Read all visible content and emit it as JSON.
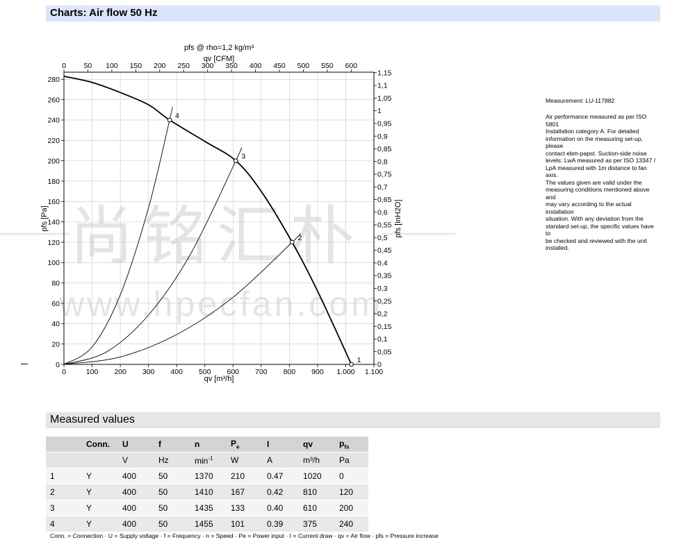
{
  "header": {
    "title": "Charts: Air flow 50 Hz"
  },
  "side_panel": {
    "measurement_ref": "Measurement: LU-117882",
    "description_lines": [
      "Air performance measured as per ISO 5801",
      "Installation category A. For detailed",
      "information on the measuring set-up, please",
      "contact ebm-papst. Suction-side noise",
      "levels: LwA measured as per ISO 13347 /",
      "LpA measured with 1m distance to fan axis.",
      "The values given are valid under the",
      "measuring conditions mentioned above and",
      "may vary according to the actual installation",
      "situation. With any deviation from the",
      "standard set-up, the specific values have to",
      "be checked and reviewed with the unit",
      "installed."
    ]
  },
  "watermark": {
    "cn": "尚铭汇朴",
    "url": "www.hpecfan.com"
  },
  "chart_data": {
    "type": "line",
    "title": "pfs @ rho=1,2 kg/m³",
    "xlabel": "qv [m³/h]",
    "ylabel": "pfs [Pa]",
    "x2label": "qv [CFM]",
    "y2label": "pfs [inH2O]",
    "xlim": [
      0,
      1100
    ],
    "ylim": [
      0,
      287
    ],
    "x_ticks": [
      0,
      100,
      200,
      300,
      400,
      500,
      600,
      700,
      800,
      900,
      1000,
      1100
    ],
    "x_tick_labels": [
      "0",
      "100",
      "200",
      "300",
      "400",
      "500",
      "600",
      "700",
      "800",
      "900",
      "1.000",
      "1.100"
    ],
    "y_ticks": [
      0,
      20,
      40,
      60,
      80,
      100,
      120,
      140,
      160,
      180,
      200,
      220,
      240,
      260,
      280
    ],
    "x2_ticks": [
      0,
      50,
      100,
      150,
      200,
      250,
      300,
      350,
      400,
      450,
      500,
      550,
      600
    ],
    "y2_ticks": [
      "0",
      "0,05",
      "0,1",
      "0,15",
      "0,2",
      "0,25",
      "0,3",
      "0,35",
      "0,4",
      "0,45",
      "0,5",
      "0,55",
      "0,6",
      "0,65",
      "0,7",
      "0,75",
      "0,8",
      "0,85",
      "0,9",
      "0,95",
      "1",
      "1,05",
      "1,1",
      "1,15"
    ],
    "grid": true,
    "series": [
      {
        "values": [
          [
            0,
            283
          ],
          [
            100,
            277
          ],
          [
            200,
            267
          ],
          [
            300,
            255
          ],
          [
            375,
            240
          ],
          [
            500,
            219
          ],
          [
            610,
            200
          ],
          [
            700,
            170
          ],
          [
            810,
            120
          ],
          [
            900,
            72
          ],
          [
            1020,
            0
          ]
        ]
      }
    ],
    "system_curves": [
      {
        "label": "2",
        "values": [
          [
            0,
            0
          ],
          [
            200,
            7.3
          ],
          [
            400,
            29.3
          ],
          [
            600,
            65.9
          ],
          [
            810,
            120
          ],
          [
            840,
            129
          ]
        ]
      },
      {
        "label": "3",
        "values": [
          [
            0,
            0
          ],
          [
            150,
            12.1
          ],
          [
            300,
            48.4
          ],
          [
            450,
            108.8
          ],
          [
            610,
            200
          ],
          [
            630,
            213
          ]
        ]
      },
      {
        "label": "4",
        "values": [
          [
            0,
            0
          ],
          [
            100,
            17.1
          ],
          [
            200,
            68.3
          ],
          [
            300,
            153.6
          ],
          [
            375,
            240
          ],
          [
            385,
            253
          ]
        ]
      }
    ],
    "operating_points": [
      {
        "label": "1",
        "x": 1020,
        "y": 0
      },
      {
        "label": "2",
        "x": 810,
        "y": 120
      },
      {
        "label": "3",
        "x": 610,
        "y": 200
      },
      {
        "label": "4",
        "x": 375,
        "y": 240
      }
    ]
  },
  "measured": {
    "title": "Measured values",
    "headers": [
      "",
      "Conn.",
      "U",
      "f",
      "n",
      "Pe",
      "I",
      "qv",
      "pfs"
    ],
    "units": [
      "",
      "",
      "V",
      "Hz",
      "min-1",
      "W",
      "A",
      "m³/h",
      "Pa"
    ],
    "rows": [
      [
        "1",
        "Y",
        "400",
        "50",
        "1370",
        "210",
        "0.47",
        "1020",
        "0"
      ],
      [
        "2",
        "Y",
        "400",
        "50",
        "1410",
        "167",
        "0.42",
        "810",
        "120"
      ],
      [
        "3",
        "Y",
        "400",
        "50",
        "1435",
        "133",
        "0.40",
        "610",
        "200"
      ],
      [
        "4",
        "Y",
        "400",
        "50",
        "1455",
        "101",
        "0.39",
        "375",
        "240"
      ]
    ],
    "legend": "Conn. = Connection · U = Supply voltage · f = Frequency · n = Speed · Pe = Power input · I = Current draw · qv = Air flow · pfs = Pressure increase"
  }
}
